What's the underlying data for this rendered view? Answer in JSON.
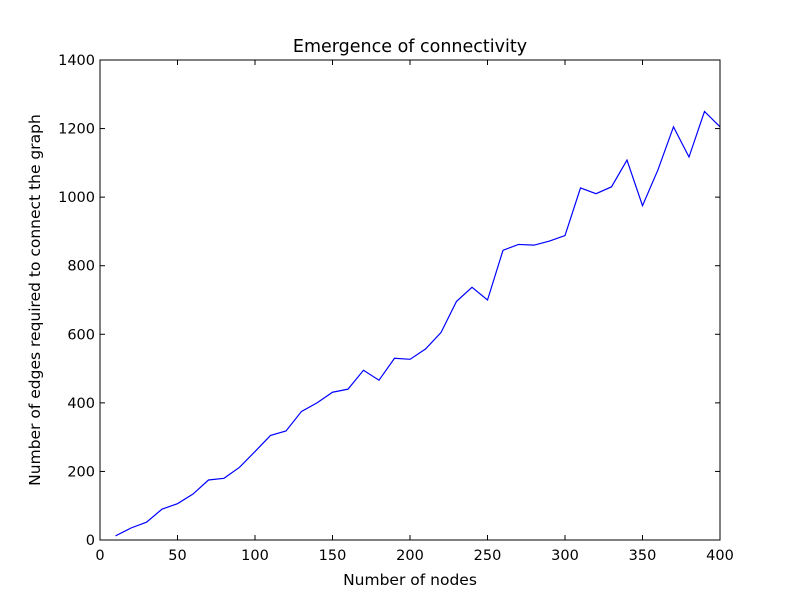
{
  "chart_data": {
    "type": "line",
    "title": "Emergence of connectivity",
    "xlabel": "Number of nodes",
    "ylabel": "Number of edges required to connect the graph",
    "xlim": [
      0,
      400
    ],
    "ylim": [
      0,
      1400
    ],
    "xticks": [
      0,
      50,
      100,
      150,
      200,
      250,
      300,
      350,
      400
    ],
    "yticks": [
      0,
      200,
      400,
      600,
      800,
      1000,
      1200,
      1400
    ],
    "grid": false,
    "line_color": "#0000ff",
    "series": [
      {
        "x": [
          10,
          20,
          30,
          40,
          50,
          60,
          70,
          80,
          90,
          100,
          110,
          120,
          130,
          140,
          150,
          160,
          170,
          180,
          190,
          200,
          210,
          220,
          230,
          240,
          250,
          260,
          270,
          280,
          290,
          300,
          310,
          320,
          330,
          340,
          350,
          360,
          370,
          380,
          390,
          400
        ],
        "y": [
          12,
          35,
          52,
          90,
          106,
          134,
          175,
          180,
          212,
          258,
          305,
          318,
          375,
          400,
          431,
          440,
          495,
          466,
          530,
          527,
          557,
          605,
          696,
          737,
          700,
          845,
          862,
          860,
          872,
          888,
          1027,
          1010,
          1030,
          1108,
          975,
          1080,
          1205,
          1117,
          1250,
          1205
        ]
      }
    ]
  }
}
